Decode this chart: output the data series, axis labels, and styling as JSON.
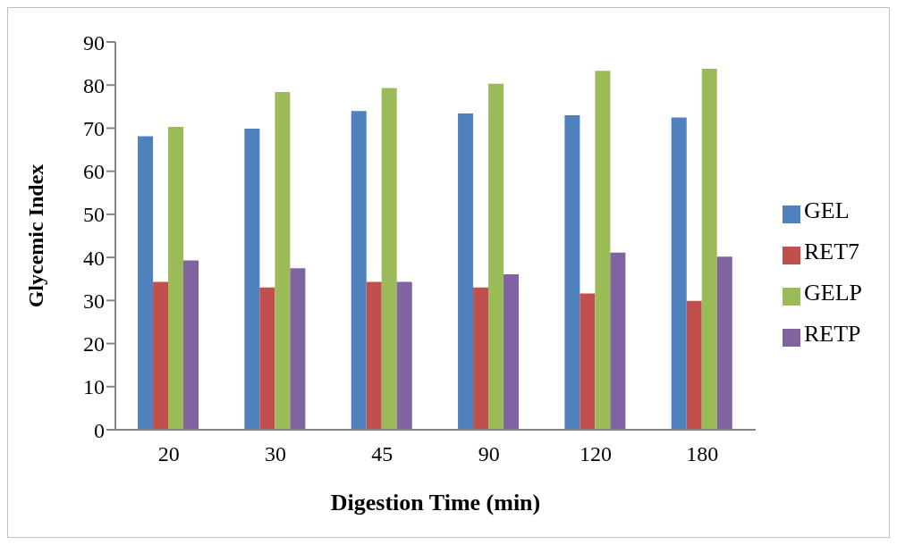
{
  "chart_data": {
    "type": "bar",
    "xlabel": "Digestion Time (min)",
    "ylabel": "Glycemic Index",
    "categories": [
      "20",
      "30",
      "45",
      "90",
      "120",
      "180"
    ],
    "series": [
      {
        "name": "GEL",
        "color": "#4f81bd",
        "values": [
          68.1,
          69.9,
          74.0,
          73.4,
          73.0,
          72.5
        ]
      },
      {
        "name": "RET7",
        "color": "#c0504d",
        "values": [
          34.3,
          33.0,
          34.3,
          33.0,
          31.6,
          29.9
        ]
      },
      {
        "name": "GELP",
        "color": "#9bbb59",
        "values": [
          70.3,
          78.4,
          79.3,
          80.3,
          83.3,
          83.8
        ]
      },
      {
        "name": "RETP",
        "color": "#8064a2",
        "values": [
          39.3,
          37.5,
          34.3,
          36.1,
          41.1,
          40.2
        ]
      }
    ],
    "ylim": [
      0,
      90
    ],
    "yticks": [
      0,
      10,
      20,
      30,
      40,
      50,
      60,
      70,
      80,
      90
    ],
    "grid": false,
    "legend": "right"
  }
}
